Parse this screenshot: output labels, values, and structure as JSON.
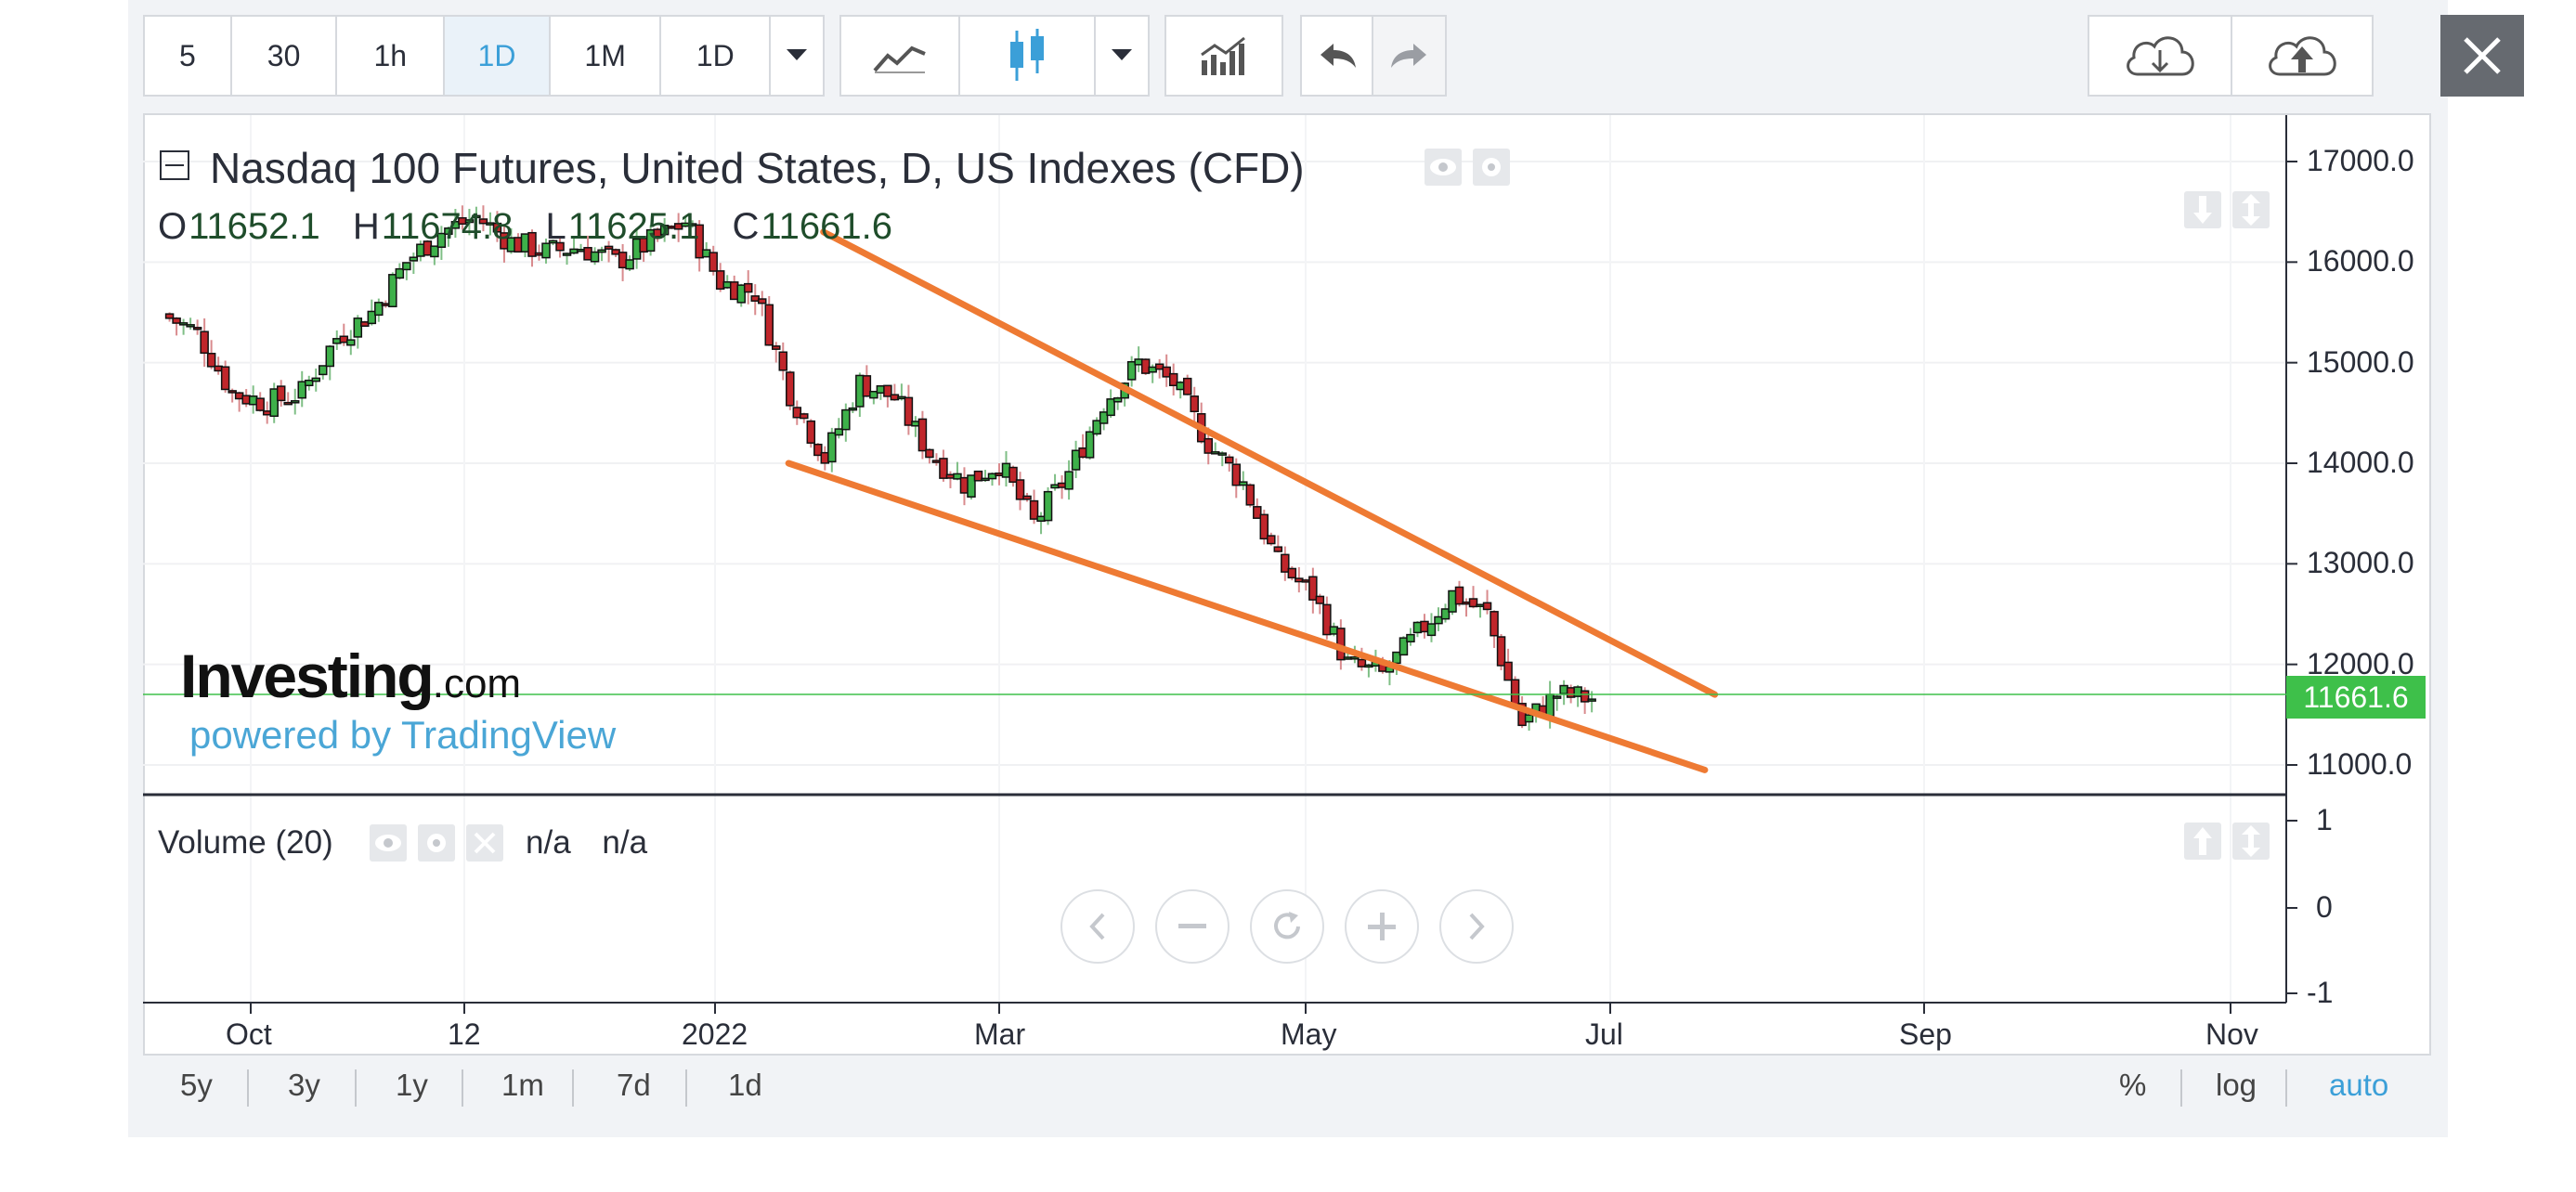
{
  "toolbar": {
    "intervals": [
      "5",
      "30",
      "1h",
      "1D",
      "1M",
      "1D"
    ],
    "active_interval_index": 3
  },
  "legend": {
    "title": "Nasdaq 100 Futures, United States, D, US Indexes (CFD)",
    "o_label": "O",
    "o_value": "11652.1",
    "h_label": "H",
    "h_value": "11674.8",
    "l_label": "L",
    "l_value": "11625.1",
    "c_label": "C",
    "c_value": "11661.6"
  },
  "branding": {
    "logo": "Investing",
    "logo_suffix": ".com",
    "powered": "powered by TradingView"
  },
  "volume": {
    "label": "Volume (20)",
    "value1": "n/a",
    "value2": "n/a"
  },
  "price_axis": {
    "ticks": [
      "17000.0",
      "16000.0",
      "15000.0",
      "14000.0",
      "13000.0",
      "12000.0",
      "11000.0"
    ],
    "last_price": "11661.6"
  },
  "volume_axis": {
    "ticks": [
      "1",
      "0",
      "-1"
    ]
  },
  "time_axis": {
    "ticks": [
      "Oct",
      "12",
      "2022",
      "Mar",
      "May",
      "Jul",
      "Sep",
      "Nov"
    ]
  },
  "ranges": [
    "5y",
    "3y",
    "1y",
    "1m",
    "7d",
    "1d"
  ],
  "scales": [
    "%",
    "log",
    "auto"
  ],
  "colors": {
    "up": "#3eb04a",
    "down": "#c0262b",
    "trend": "#ee7a33",
    "accent": "#3b9fd8",
    "last_price": "#3ec04a"
  },
  "chart_data": {
    "type": "candlestick",
    "price_range": [
      10700,
      17400
    ],
    "trendlines": [
      {
        "from": [
          "2022-01-24",
          16300
        ],
        "to": [
          "2022-07-22",
          11700
        ]
      },
      {
        "from": [
          "2022-01-17",
          14000
        ],
        "to": [
          "2022-07-20",
          10950
        ]
      }
    ],
    "closes_weekly": [
      [
        "2021-09-14",
        15480
      ],
      [
        "2021-09-21",
        15300
      ],
      [
        "2021-09-28",
        14700
      ],
      [
        "2021-10-05",
        14600
      ],
      [
        "2021-10-12",
        14700
      ],
      [
        "2021-10-19",
        15250
      ],
      [
        "2021-10-26",
        15500
      ],
      [
        "2021-11-02",
        16000
      ],
      [
        "2021-11-09",
        16300
      ],
      [
        "2021-11-16",
        16450
      ],
      [
        "2021-11-23",
        16200
      ],
      [
        "2021-11-30",
        16100
      ],
      [
        "2021-12-07",
        16150
      ],
      [
        "2021-12-14",
        16000
      ],
      [
        "2021-12-21",
        16200
      ],
      [
        "2021-12-28",
        16400
      ],
      [
        "2022-01-04",
        15800
      ],
      [
        "2022-01-11",
        15700
      ],
      [
        "2022-01-18",
        14700
      ],
      [
        "2022-01-25",
        14050
      ],
      [
        "2022-02-01",
        14800
      ],
      [
        "2022-02-08",
        14650
      ],
      [
        "2022-02-15",
        14100
      ],
      [
        "2022-02-22",
        13800
      ],
      [
        "2022-03-01",
        14000
      ],
      [
        "2022-03-08",
        13400
      ],
      [
        "2022-03-15",
        13900
      ],
      [
        "2022-03-22",
        14600
      ],
      [
        "2022-03-29",
        15000
      ],
      [
        "2022-04-05",
        14800
      ],
      [
        "2022-04-12",
        14200
      ],
      [
        "2022-04-19",
        13800
      ],
      [
        "2022-04-26",
        13000
      ],
      [
        "2022-05-03",
        12700
      ],
      [
        "2022-05-10",
        12000
      ],
      [
        "2022-05-17",
        11900
      ],
      [
        "2022-05-24",
        12300
      ],
      [
        "2022-05-31",
        12700
      ],
      [
        "2022-06-07",
        12500
      ],
      [
        "2022-06-14",
        11400
      ],
      [
        "2022-06-21",
        11700
      ],
      [
        "2022-06-28",
        11660
      ]
    ]
  }
}
